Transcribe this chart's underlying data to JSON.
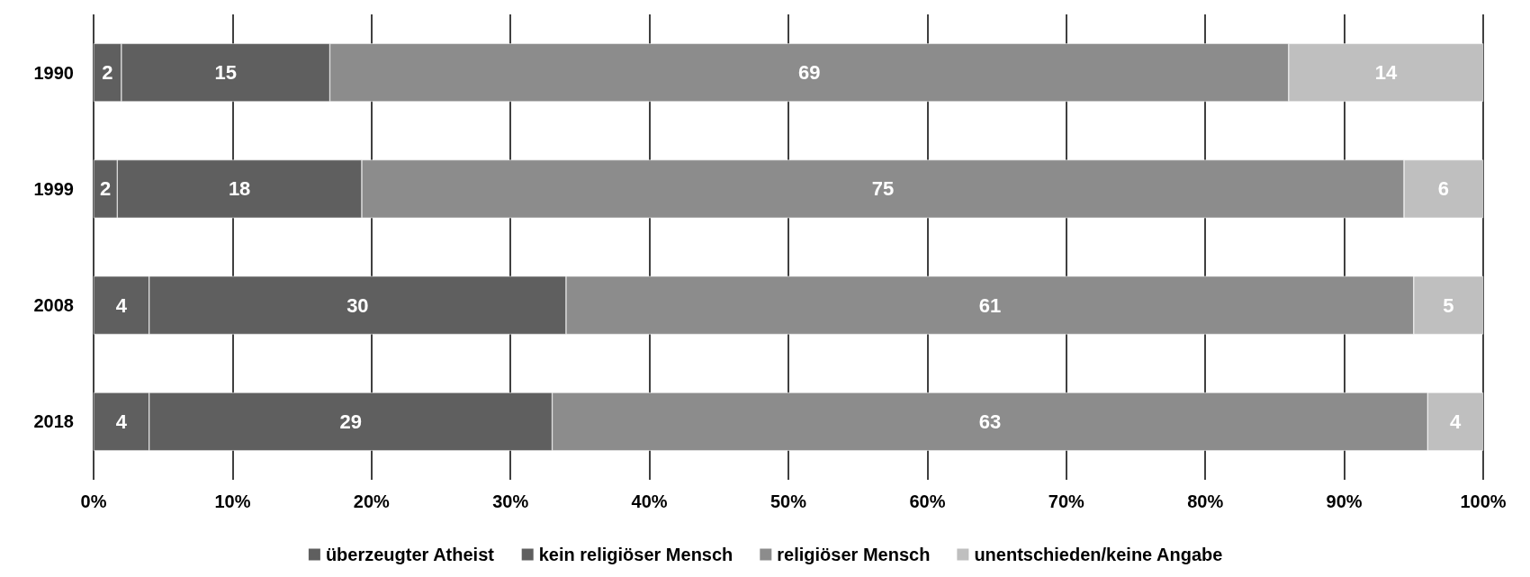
{
  "chart_data": {
    "type": "bar",
    "orientation": "horizontal",
    "stacked": true,
    "categories": [
      "1990",
      "1999",
      "2008",
      "2018"
    ],
    "series": [
      {
        "name": "überzeugter Atheist",
        "color": "#5f5f5f",
        "values": [
          2,
          1.7,
          4,
          4
        ],
        "value_labels": [
          "2",
          "2",
          "4",
          "4"
        ]
      },
      {
        "name": "kein religiöser Mensch",
        "color": "#5f5f5f",
        "values": [
          15,
          17.6,
          30,
          29
        ],
        "value_labels": [
          "15",
          "18",
          "30",
          "29"
        ]
      },
      {
        "name": "religiöser Mensch",
        "color": "#8c8c8c",
        "values": [
          69,
          75,
          61,
          63
        ],
        "value_labels": [
          "69",
          "75",
          "61",
          "63"
        ]
      },
      {
        "name": "unentschieden/keine Angabe",
        "color": "#bfbfbf",
        "values": [
          14,
          5.7,
          5,
          4
        ],
        "value_labels": [
          "14",
          "6",
          "5",
          "4"
        ]
      }
    ],
    "xlim": [
      0,
      100
    ],
    "xticks": [
      {
        "value": 0,
        "label": "0%"
      },
      {
        "value": 10,
        "label": "10%"
      },
      {
        "value": 20,
        "label": "20%"
      },
      {
        "value": 30,
        "label": "30%"
      },
      {
        "value": 40,
        "label": "40%"
      },
      {
        "value": 50,
        "label": "50%"
      },
      {
        "value": 60,
        "label": "60%"
      },
      {
        "value": 70,
        "label": "70%"
      },
      {
        "value": 80,
        "label": "80%"
      },
      {
        "value": 90,
        "label": "90%"
      },
      {
        "value": 100,
        "label": "100%"
      }
    ],
    "grid": "x",
    "legend": "bottom"
  }
}
